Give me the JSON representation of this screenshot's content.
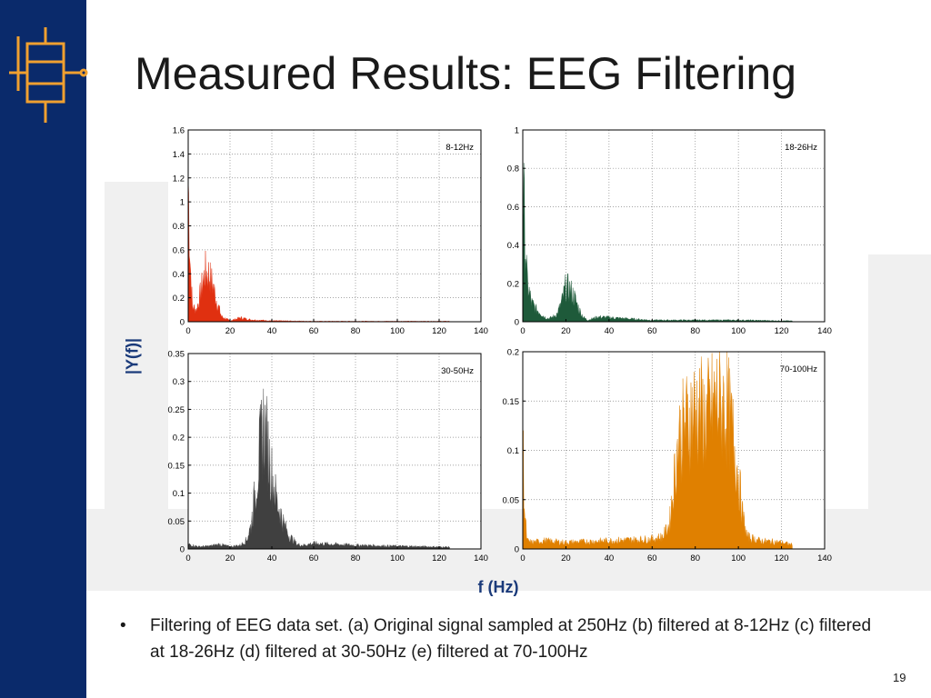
{
  "slide": {
    "title": "Measured Results: EEG Filtering",
    "caption_bullet": "•",
    "caption": "Filtering of EEG data set. (a) Original signal sampled at 250Hz (b) filtered at 8-12Hz (c) filtered at 18-26Hz (d) filtered at 30-50Hz (e) filtered at 70-100Hz",
    "slide_number": "19",
    "shared_ylabel": "|Y(f)|",
    "shared_xlabel": "f (Hz)"
  },
  "colors": {
    "sidebar": "#0a2a6b",
    "logo_accent": "#f0a030",
    "axis_label": "#1a3a7a",
    "red": "#e03010",
    "green": "#1e5a3a",
    "gray": "#404040",
    "orange": "#e08000"
  },
  "chart_data": [
    {
      "type": "area",
      "legend": "8-12Hz",
      "color": "#e03010",
      "xlim": [
        0,
        140
      ],
      "ylim": [
        0,
        1.6
      ],
      "xticks": [
        0,
        20,
        40,
        60,
        80,
        100,
        120,
        140
      ],
      "yticks": [
        0,
        0.2,
        0.4,
        0.6,
        0.8,
        1,
        1.2,
        1.4,
        1.6
      ],
      "grid": true,
      "x": [
        0,
        1,
        2,
        4,
        6,
        8,
        10,
        12,
        14,
        16,
        20,
        25,
        30,
        40,
        60,
        80,
        100,
        125
      ],
      "y": [
        1.45,
        0.6,
        0.15,
        0.12,
        0.3,
        0.5,
        0.48,
        0.35,
        0.18,
        0.05,
        0.01,
        0.04,
        0.02,
        0.01,
        0.005,
        0.005,
        0.005,
        0.005
      ]
    },
    {
      "type": "area",
      "legend": "18-26Hz",
      "color": "#1e5a3a",
      "xlim": [
        0,
        140
      ],
      "ylim": [
        0,
        1
      ],
      "xticks": [
        0,
        20,
        40,
        60,
        80,
        100,
        120,
        140
      ],
      "yticks": [
        0,
        0.2,
        0.4,
        0.6,
        0.8,
        1
      ],
      "grid": true,
      "x": [
        0,
        1,
        2,
        4,
        6,
        8,
        10,
        12,
        14,
        16,
        18,
        20,
        22,
        24,
        26,
        28,
        30,
        35,
        60,
        80,
        100,
        125
      ],
      "y": [
        0.9,
        0.55,
        0.25,
        0.12,
        0.08,
        0.06,
        0.03,
        0.02,
        0.03,
        0.05,
        0.12,
        0.22,
        0.2,
        0.15,
        0.08,
        0.03,
        0.01,
        0.03,
        0.01,
        0.01,
        0.01,
        0.005
      ]
    },
    {
      "type": "area",
      "legend": "30-50Hz",
      "color": "#404040",
      "xlim": [
        0,
        140
      ],
      "ylim": [
        0,
        0.35
      ],
      "xticks": [
        0,
        20,
        40,
        60,
        80,
        100,
        120,
        140
      ],
      "yticks": [
        0,
        0.05,
        0.1,
        0.15,
        0.2,
        0.25,
        0.3,
        0.35
      ],
      "grid": true,
      "x": [
        0,
        5,
        10,
        15,
        20,
        25,
        28,
        30,
        32,
        34,
        36,
        38,
        40,
        42,
        44,
        46,
        48,
        50,
        52,
        55,
        60,
        80,
        100,
        125
      ],
      "y": [
        0.01,
        0.005,
        0.006,
        0.01,
        0.005,
        0.008,
        0.02,
        0.05,
        0.12,
        0.2,
        0.27,
        0.22,
        0.16,
        0.11,
        0.08,
        0.05,
        0.03,
        0.02,
        0.01,
        0.008,
        0.012,
        0.008,
        0.006,
        0.004
      ]
    },
    {
      "type": "area",
      "legend": "70-100Hz",
      "color": "#e08000",
      "xlim": [
        0,
        140
      ],
      "ylim": [
        0,
        0.2
      ],
      "xticks": [
        0,
        20,
        40,
        60,
        80,
        100,
        120,
        140
      ],
      "yticks": [
        0,
        0.05,
        0.1,
        0.15,
        0.2
      ],
      "grid": true,
      "x": [
        0,
        1,
        2,
        4,
        10,
        20,
        40,
        60,
        65,
        68,
        70,
        72,
        75,
        80,
        85,
        90,
        95,
        98,
        100,
        102,
        104,
        110,
        120,
        125
      ],
      "y": [
        0.13,
        0.04,
        0.01,
        0.008,
        0.01,
        0.008,
        0.01,
        0.012,
        0.015,
        0.03,
        0.08,
        0.13,
        0.15,
        0.17,
        0.16,
        0.18,
        0.17,
        0.13,
        0.09,
        0.04,
        0.015,
        0.01,
        0.008,
        0.005
      ]
    }
  ]
}
